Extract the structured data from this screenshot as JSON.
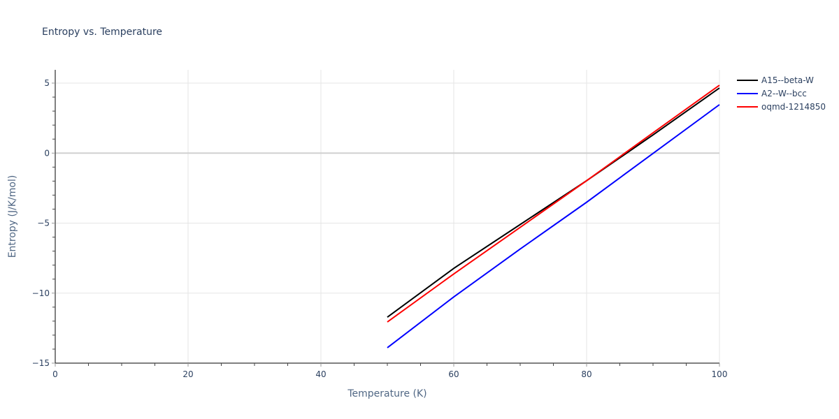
{
  "chart_data": {
    "type": "line",
    "title": "Entropy vs. Temperature",
    "xlabel": "Temperature (K)",
    "ylabel": "Entropy (J/K/mol)",
    "xlim": [
      0,
      100
    ],
    "ylim": [
      -15,
      6
    ],
    "x_ticks": [
      0,
      20,
      40,
      60,
      80,
      100
    ],
    "x_tick_labels": [
      "0",
      "20",
      "40",
      "60",
      "80",
      "100"
    ],
    "x_minor_step": 5,
    "y_ticks": [
      -15,
      -10,
      -5,
      0,
      5
    ],
    "y_tick_labels": [
      "−15",
      "−10",
      "−5",
      "0",
      "5"
    ],
    "y_minor_step": 1,
    "grid": true,
    "legend_position": "top-right-outside",
    "x": [
      50,
      60,
      70,
      80,
      90,
      100
    ],
    "series": [
      {
        "name": "A15--beta-W",
        "color": "#000000",
        "values": [
          -11.72,
          -8.23,
          -5.1,
          -1.97,
          1.3,
          4.65
        ]
      },
      {
        "name": "A2--W--bcc",
        "color": "#0000ff",
        "values": [
          -13.9,
          -10.27,
          -6.85,
          -3.51,
          -0.02,
          3.46
        ]
      },
      {
        "name": "oqmd-1214850",
        "color": "#ff0000",
        "values": [
          -12.06,
          -8.63,
          -5.3,
          -1.97,
          1.45,
          4.85
        ]
      }
    ]
  }
}
